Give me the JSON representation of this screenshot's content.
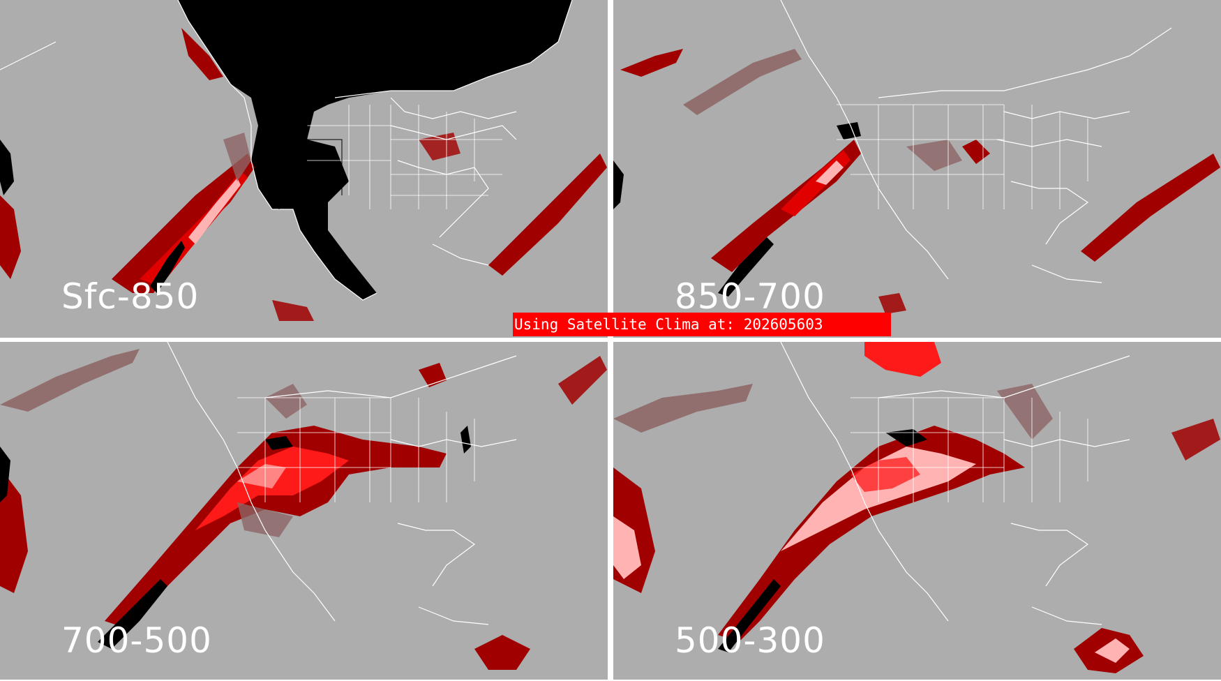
{
  "banner": {
    "text": "Using Satellite Clima at: 202605603"
  },
  "panels": [
    {
      "label": "Sfc-850"
    },
    {
      "label": "850-700"
    },
    {
      "label": "700-500"
    },
    {
      "label": "500-300"
    }
  ],
  "colors": {
    "background": "#adadad",
    "coastlines": "#ffffff",
    "dark_red": "#a00000",
    "red": "#ff1a1a",
    "pink": "#ffb3b3",
    "brownish": "#8c6464",
    "black": "#000000",
    "banner": "#ff0000"
  }
}
